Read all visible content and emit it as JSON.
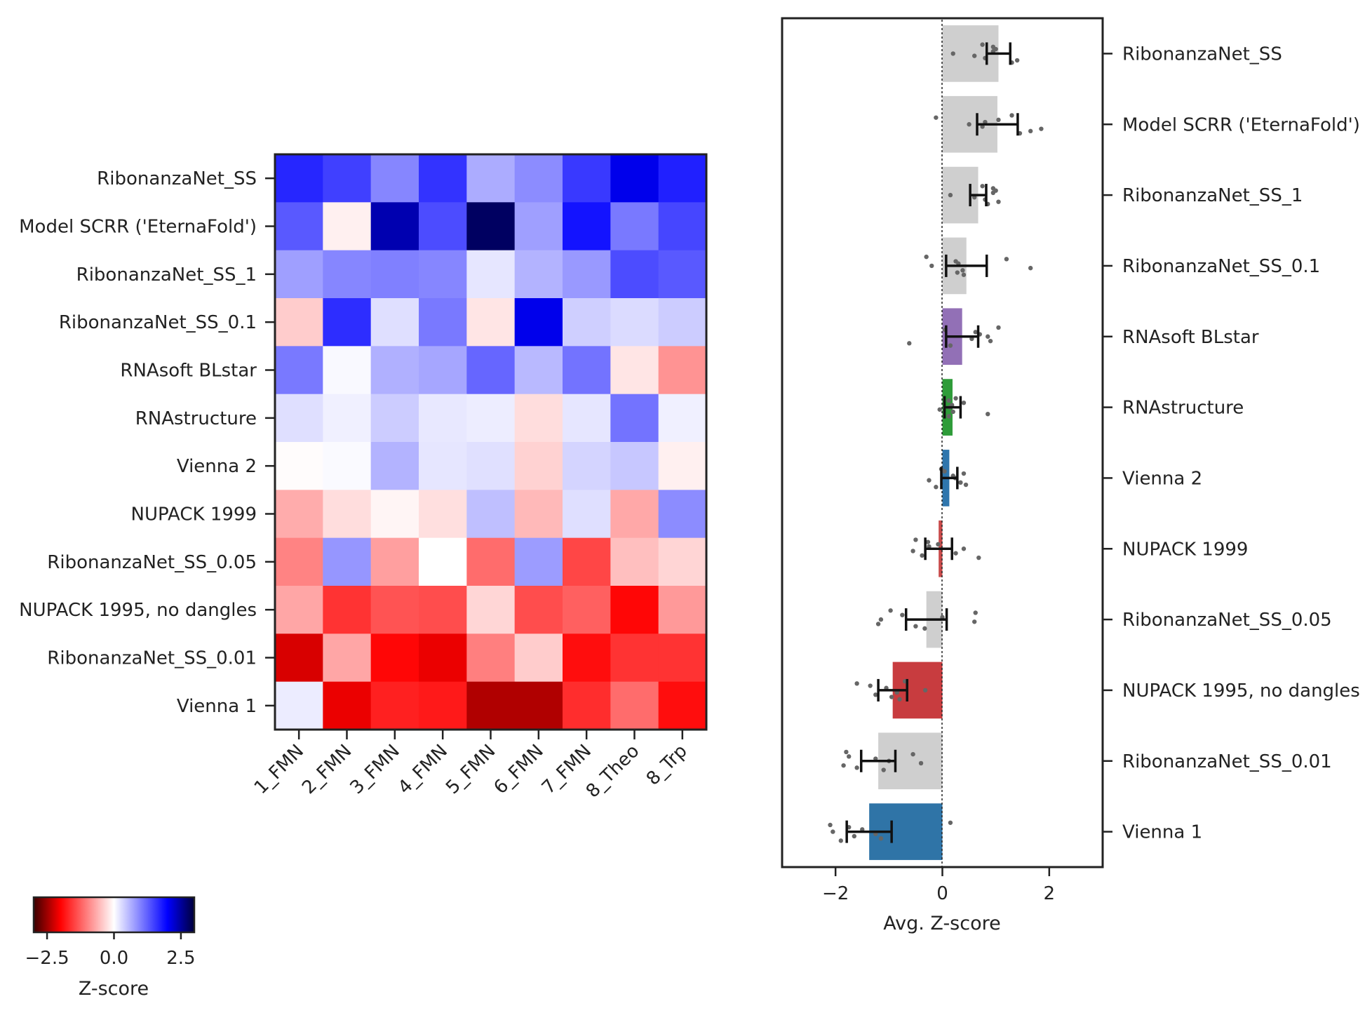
{
  "chart_data": [
    {
      "type": "heatmap",
      "title": "",
      "rows": [
        "RibonanzaNet_SS",
        "Model SCRR ('EternaFold')",
        "RibonanzaNet_SS_1",
        "RibonanzaNet_SS_0.1",
        "RNAsoft BLstar",
        "RNAstructure",
        "Vienna 2",
        "NUPACK 1999",
        "RibonanzaNet_SS_0.05",
        "NUPACK 1995, no dangles",
        "RibonanzaNet_SS_0.01",
        "Vienna 1"
      ],
      "columns": [
        "1_FMN",
        "2_FMN",
        "3_FMN",
        "4_FMN",
        "5_FMN",
        "6_FMN",
        "7_FMN",
        "8_Theo",
        "8_Trp"
      ],
      "values": [
        [
          1.7,
          1.5,
          0.95,
          1.6,
          0.65,
          0.9,
          1.55,
          2.1,
          1.75
        ],
        [
          1.3,
          -0.12,
          2.4,
          1.4,
          2.8,
          0.75,
          1.85,
          1.05,
          1.45
        ],
        [
          0.75,
          0.95,
          1.0,
          0.95,
          0.2,
          0.6,
          0.8,
          1.4,
          1.3
        ],
        [
          -0.4,
          1.65,
          0.25,
          1.05,
          -0.2,
          2.1,
          0.38,
          0.28,
          0.4
        ],
        [
          1.05,
          0.05,
          0.62,
          0.7,
          1.2,
          0.55,
          1.1,
          -0.2,
          -0.85
        ],
        [
          0.25,
          0.12,
          0.4,
          0.18,
          0.14,
          -0.27,
          0.2,
          1.1,
          0.12
        ],
        [
          -0.02,
          0.04,
          0.6,
          0.2,
          0.24,
          -0.35,
          0.34,
          0.44,
          -0.12
        ],
        [
          -0.65,
          -0.27,
          -0.08,
          -0.25,
          0.5,
          -0.55,
          0.25,
          -0.68,
          0.9
        ],
        [
          -0.97,
          0.82,
          -0.75,
          0.0,
          -1.15,
          0.78,
          -1.45,
          -0.5,
          -0.33
        ],
        [
          -0.7,
          -1.6,
          -1.35,
          -1.4,
          -0.32,
          -1.4,
          -1.25,
          -1.95,
          -0.8
        ],
        [
          -2.2,
          -0.7,
          -1.95,
          -2.1,
          -1.0,
          -0.4,
          -1.9,
          -1.6,
          -1.6
        ],
        [
          0.15,
          -2.1,
          -1.75,
          -1.8,
          -2.4,
          -2.4,
          -1.65,
          -1.15,
          -1.9
        ]
      ],
      "colormap": {
        "low": "#3a0000",
        "mid": "#ffffff",
        "high": "#00003a"
      },
      "clim": [
        -3,
        3
      ],
      "colorbar": {
        "label": "Z-score",
        "ticks": [
          -2.5,
          0.0,
          2.5
        ],
        "tick_labels": [
          "−2.5",
          "0.0",
          "2.5"
        ]
      }
    },
    {
      "type": "bar",
      "orientation": "horizontal",
      "categories": [
        "RibonanzaNet_SS",
        "Model SCRR ('EternaFold')",
        "RibonanzaNet_SS_1",
        "RibonanzaNet_SS_0.1",
        "RNAsoft BLstar",
        "RNAstructure",
        "Vienna 2",
        "NUPACK 1999",
        "RibonanzaNet_SS_0.05",
        "NUPACK 1995, no dangles",
        "RibonanzaNet_SS_0.01",
        "Vienna 1"
      ],
      "values": [
        1.05,
        1.03,
        0.67,
        0.45,
        0.37,
        0.19,
        0.13,
        -0.07,
        -0.3,
        -0.93,
        -1.2,
        -1.37
      ],
      "error": [
        0.22,
        0.38,
        0.15,
        0.38,
        0.3,
        0.15,
        0.15,
        0.25,
        0.38,
        0.27,
        0.32,
        0.42
      ],
      "bar_colors": [
        "#cfcfcf",
        "#cfcfcf",
        "#cfcfcf",
        "#cfcfcf",
        "#9270b6",
        "#2e9c39",
        "#2f76ad",
        "#c84a4a",
        "#cfcfcf",
        "#c83c3f",
        "#cfcfcf",
        "#2f74a7"
      ],
      "points": [
        [
          0.75,
          0.95,
          1.0,
          0.95,
          0.2,
          0.6,
          0.8,
          1.4,
          1.3
        ],
        [
          1.3,
          -0.12,
          1.05,
          0.8,
          0.5,
          0.75,
          1.85,
          1.65,
          1.45
        ],
        [
          0.75,
          0.95,
          1.0,
          0.95,
          0.15,
          0.6,
          0.8,
          1.05,
          0.85
        ],
        [
          -0.3,
          1.2,
          0.25,
          0.3,
          -0.2,
          1.65,
          0.38,
          0.28,
          0.4
        ],
        [
          1.05,
          0.05,
          0.62,
          0.7,
          0.85,
          0.55,
          0.9,
          -0.62,
          0.15
        ],
        [
          0.25,
          0.12,
          0.4,
          0.18,
          0.14,
          -0.05,
          0.2,
          0.85,
          0.12
        ],
        [
          -0.02,
          0.04,
          0.4,
          0.2,
          0.24,
          -0.25,
          0.34,
          0.44,
          -0.12
        ],
        [
          -0.5,
          -0.27,
          -0.08,
          -0.25,
          0.4,
          -0.55,
          0.25,
          -0.38,
          0.68
        ],
        [
          -0.97,
          0.62,
          -0.75,
          0.0,
          -1.15,
          0.6,
          -1.2,
          -0.5,
          -0.33
        ],
        [
          -0.7,
          -1.6,
          -1.35,
          -1.05,
          -0.32,
          -0.85,
          -1.25,
          -0.95,
          -0.8
        ],
        [
          -1.8,
          -0.55,
          -1.75,
          -1.25,
          -1.0,
          -0.4,
          -1.85,
          -1.6,
          -1.1
        ],
        [
          0.15,
          -2.1,
          -1.75,
          -1.5,
          -2.05,
          -1.25,
          -1.65,
          -1.15,
          -1.9
        ]
      ],
      "xlabel": "Avg. Z-score",
      "xlim": [
        -3,
        3
      ],
      "xticks": [
        -2,
        0,
        2
      ],
      "xtick_labels": [
        "−2",
        "0",
        "2"
      ]
    }
  ]
}
